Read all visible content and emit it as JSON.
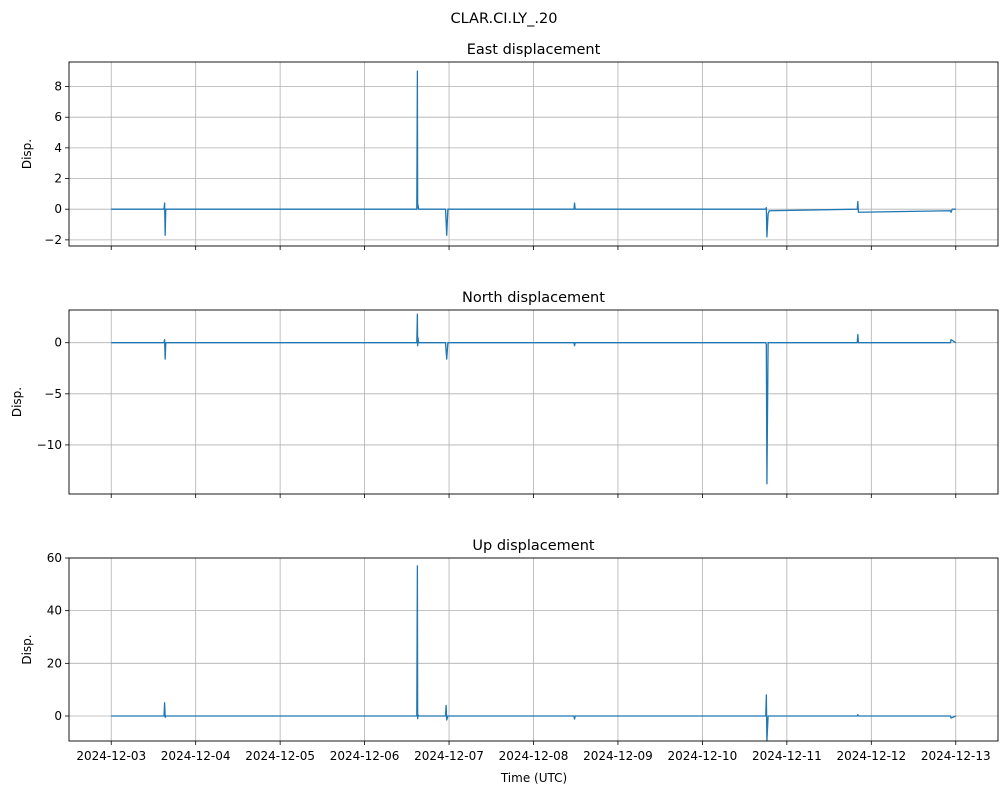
{
  "figure": {
    "title": "CLAR.CI.LY_.20",
    "xlabel": "Time (UTC)",
    "x_ticks": [
      "2024-12-03",
      "2024-12-04",
      "2024-12-05",
      "2024-12-06",
      "2024-12-07",
      "2024-12-08",
      "2024-12-09",
      "2024-12-10",
      "2024-12-11",
      "2024-12-12",
      "2024-12-13"
    ]
  },
  "colors": {
    "line": "#1f77b4",
    "grid": "#b0b0b0",
    "axis": "#000000"
  },
  "chart_data": [
    {
      "type": "line",
      "title": "East displacement",
      "ylabel": "Disp.",
      "xlim": [
        "2024-12-02T12:00",
        "2024-12-13T12:00"
      ],
      "ylim": [
        -2.4,
        9.6
      ],
      "y_ticks": [
        -2,
        0,
        2,
        4,
        6,
        8
      ],
      "x_ticklabels_visible": false,
      "grid": true,
      "series": [
        {
          "x": [
            "2024-12-03T00:00",
            "2024-12-03T15:00",
            "2024-12-03T15:10",
            "2024-12-03T15:20",
            "2024-12-03T15:30",
            "2024-12-06T14:50",
            "2024-12-06T15:00",
            "2024-12-06T15:05",
            "2024-12-06T15:10",
            "2024-12-06T15:20",
            "2024-12-06T23:00",
            "2024-12-06T23:10",
            "2024-12-06T23:20",
            "2024-12-06T23:40",
            "2024-12-08T11:30",
            "2024-12-08T11:40",
            "2024-12-08T11:50",
            "2024-12-10T18:00",
            "2024-12-10T18:10",
            "2024-12-10T18:20",
            "2024-12-10T18:40",
            "2024-12-10T19:00",
            "2024-12-11T20:00",
            "2024-12-11T20:10",
            "2024-12-11T20:20",
            "2024-12-12T22:30",
            "2024-12-12T22:40",
            "2024-12-12T23:00",
            "2024-12-13T00:00"
          ],
          "y": [
            0.0,
            0.0,
            0.4,
            -1.7,
            0.0,
            0.0,
            9.0,
            0.1,
            0.3,
            0.0,
            0.0,
            -0.8,
            -1.7,
            0.0,
            0.0,
            0.4,
            0.0,
            0.0,
            0.1,
            -1.8,
            -0.3,
            -0.1,
            0.0,
            0.5,
            -0.2,
            -0.1,
            -0.2,
            0.0,
            0.0
          ]
        }
      ]
    },
    {
      "type": "line",
      "title": "North displacement",
      "ylabel": "Disp.",
      "xlim": [
        "2024-12-02T12:00",
        "2024-12-13T12:00"
      ],
      "ylim": [
        -14.8,
        3.2
      ],
      "y_ticks": [
        -10,
        -5,
        0
      ],
      "x_ticklabels_visible": false,
      "grid": true,
      "series": [
        {
          "x": [
            "2024-12-03T00:00",
            "2024-12-03T15:00",
            "2024-12-03T15:10",
            "2024-12-03T15:20",
            "2024-12-03T15:30",
            "2024-12-06T14:50",
            "2024-12-06T15:00",
            "2024-12-06T15:05",
            "2024-12-06T15:10",
            "2024-12-06T15:20",
            "2024-12-06T23:00",
            "2024-12-06T23:10",
            "2024-12-06T23:20",
            "2024-12-06T23:40",
            "2024-12-08T11:30",
            "2024-12-08T11:40",
            "2024-12-08T11:50",
            "2024-12-10T18:00",
            "2024-12-10T18:10",
            "2024-12-10T18:20",
            "2024-12-10T18:40",
            "2024-12-11T20:00",
            "2024-12-11T20:10",
            "2024-12-11T20:20",
            "2024-12-12T22:30",
            "2024-12-12T22:40",
            "2024-12-13T00:00"
          ],
          "y": [
            0.0,
            0.0,
            0.3,
            -1.6,
            0.0,
            0.0,
            2.8,
            -0.3,
            0.5,
            0.0,
            0.0,
            -0.8,
            -1.6,
            0.0,
            0.0,
            -0.3,
            0.0,
            0.0,
            -0.2,
            -13.8,
            0.0,
            0.0,
            0.8,
            0.0,
            0.0,
            0.3,
            0.0
          ]
        }
      ]
    },
    {
      "type": "line",
      "title": "Up displacement",
      "ylabel": "Disp.",
      "xlabel": "Time (UTC)",
      "xlim": [
        "2024-12-02T12:00",
        "2024-12-13T12:00"
      ],
      "ylim": [
        -9.5,
        60
      ],
      "y_ticks": [
        0,
        20,
        40,
        60
      ],
      "grid": true,
      "series": [
        {
          "x": [
            "2024-12-03T00:00",
            "2024-12-03T15:00",
            "2024-12-03T15:10",
            "2024-12-03T15:20",
            "2024-12-03T15:30",
            "2024-12-06T14:50",
            "2024-12-06T15:00",
            "2024-12-06T15:05",
            "2024-12-06T15:10",
            "2024-12-06T15:20",
            "2024-12-06T23:00",
            "2024-12-06T23:10",
            "2024-12-06T23:20",
            "2024-12-06T23:40",
            "2024-12-08T11:30",
            "2024-12-08T11:40",
            "2024-12-08T11:50",
            "2024-12-10T18:00",
            "2024-12-10T18:10",
            "2024-12-10T18:20",
            "2024-12-10T18:40",
            "2024-12-11T20:00",
            "2024-12-11T20:10",
            "2024-12-11T20:20",
            "2024-12-12T22:30",
            "2024-12-12T22:40",
            "2024-12-13T00:00"
          ],
          "y": [
            0.0,
            0.0,
            5.0,
            -0.5,
            0.0,
            0.0,
            57.0,
            -1.0,
            0.5,
            0.0,
            0.0,
            4.0,
            -1.5,
            0.0,
            0.0,
            -1.2,
            0.0,
            0.0,
            8.0,
            -9.5,
            0.0,
            0.0,
            0.5,
            0.0,
            0.0,
            -0.8,
            0.0
          ]
        }
      ]
    }
  ]
}
